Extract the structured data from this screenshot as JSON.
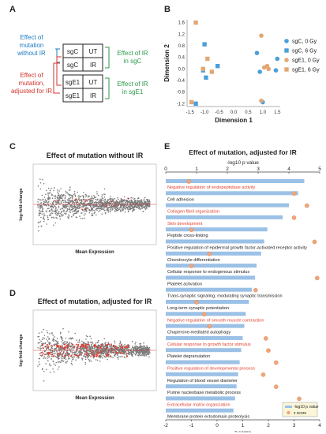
{
  "panels": {
    "A": {
      "letter": "A",
      "labels": {
        "effect_no_ir": [
          "Effect of",
          "mutation",
          "without IR"
        ],
        "effect_adj_ir": [
          "Effect of",
          "mutation,",
          "adjusted for IR"
        ],
        "effect_ir_sgc": [
          "Effect of IR",
          "in sgC"
        ],
        "effect_ir_sge1": [
          "Effect of IR",
          "in sgE1"
        ]
      },
      "rows": [
        {
          "sg": "sgC",
          "treat": "UT"
        },
        {
          "sg": "sgC",
          "treat": "IR"
        },
        {
          "sg": "sgE1",
          "treat": "UT"
        },
        {
          "sg": "sgE1",
          "treat": "IR"
        }
      ]
    },
    "B": {
      "letter": "B",
      "legend": [
        "sgC, 0 Gy",
        "sgC, 6 Gy",
        "sgE1, 0 Gy",
        "sgE1, 6 Gy"
      ]
    },
    "C": {
      "letter": "C",
      "title": "Effect of mutation without IR",
      "xlabel": "Mean Expression",
      "ylabel": "log-fold-change"
    },
    "D": {
      "letter": "D",
      "title": "Effect of mutation,  adjusted for IR",
      "xlabel": "Mean Expression",
      "ylabel": "log-fold-change"
    },
    "E": {
      "letter": "E",
      "title": "Effect of mutation,  adjusted for IR",
      "top_axis_label": "-log10 p value",
      "bottom_axis_label": "z score",
      "legend": [
        "-log10 p value",
        "z score"
      ]
    }
  },
  "chart_data": [
    {
      "id": "B",
      "type": "scatter",
      "xlabel": "Dimension 1",
      "ylabel": "Dimension 2",
      "xlim": [
        -1.6,
        1.6
      ],
      "ylim": [
        -1.3,
        1.7
      ],
      "xticks": [
        -1.5,
        -1.0,
        -0.5,
        0.0,
        0.5,
        1.0,
        1.5
      ],
      "yticks": [
        -1.2,
        -0.8,
        -0.4,
        0.0,
        0.4,
        0.8,
        1.2,
        1.6
      ],
      "series": [
        {
          "name": "sgC, 0 Gy",
          "color": "#4a9fd8",
          "shape": "circle",
          "points": [
            [
              0.8,
              0.55
            ],
            [
              0.9,
              -0.1
            ],
            [
              1.5,
              0.35
            ],
            [
              1.0,
              -1.15
            ],
            [
              1.45,
              -0.05
            ]
          ]
        },
        {
          "name": "sgC, 6 Gy",
          "color": "#4a9fd8",
          "shape": "square",
          "points": [
            [
              -1.0,
              0.85
            ],
            [
              -1.05,
              -0.05
            ],
            [
              -0.55,
              0.1
            ],
            [
              -1.3,
              -1.2
            ],
            [
              -0.95,
              -0.3
            ]
          ]
        },
        {
          "name": "sgE1, 0 Gy",
          "color": "#e0a877",
          "shape": "circle",
          "points": [
            [
              0.95,
              1.15
            ],
            [
              1.05,
              0.05
            ],
            [
              1.15,
              0.1
            ],
            [
              0.95,
              -1.1
            ],
            [
              1.2,
              0.0
            ]
          ]
        },
        {
          "name": "sgE1, 6 Gy",
          "color": "#e0a877",
          "shape": "square",
          "points": [
            [
              -1.3,
              1.6
            ],
            [
              -0.9,
              0.35
            ],
            [
              -1.05,
              0.0
            ],
            [
              -1.45,
              -1.15
            ],
            [
              -0.75,
              -0.1
            ]
          ]
        }
      ]
    },
    {
      "id": "E",
      "type": "bar",
      "orientation": "horizontal",
      "top_axis": {
        "label": "-log10 p value",
        "lim": [
          0,
          5
        ],
        "ticks": [
          0,
          1,
          2,
          3,
          4,
          5
        ]
      },
      "bottom_axis": {
        "label": "z score",
        "lim": [
          -2,
          4
        ],
        "ticks": [
          -2,
          -1,
          0,
          1,
          2,
          3,
          4
        ]
      },
      "categories": [
        "Negative regulation of endopeptidase activity",
        "Cell adhesion",
        "Collagen fibril organization",
        "Skin development",
        "Peptide cross-linking",
        "Positive regulation of epidermal growth factor-activated receptor activity",
        "Chondrocyte differentiation",
        "Cellular response to endogenous stimulus",
        "Platelet activation",
        "Trans-synaptic signaling, modulating synaptic transmission",
        "Long-term synaptic potentiation",
        "Negative regulation of smooth muscle contraction",
        "Chaperone-mediated autophagy",
        "Cellular response to growth factor stimulus",
        "Platelet degranulation",
        "Positive regulation of developmental process",
        "Regulation of blood vessel diameter",
        "Purine nucleobase metabolic process",
        "Extracellular matrix organization",
        "Membrane protein ectodomain proteolysis"
      ],
      "highlight": [
        true,
        false,
        true,
        true,
        false,
        false,
        false,
        false,
        false,
        false,
        false,
        true,
        false,
        true,
        false,
        true,
        false,
        false,
        true,
        false
      ],
      "series": [
        {
          "name": "-log10 p value",
          "values": [
            4.5,
            4.3,
            4.0,
            3.8,
            3.3,
            3.2,
            3.1,
            2.95,
            2.9,
            2.8,
            2.7,
            2.6,
            2.55,
            2.5,
            2.45,
            2.4,
            2.35,
            2.3,
            2.25,
            2.2
          ]
        },
        {
          "name": "z score",
          "values": [
            -1.1,
            3.0,
            3.5,
            3.0,
            -1.0,
            3.8,
            -0.3,
            -1.0,
            3.9,
            1.5,
            -0.8,
            -0.5,
            -0.3,
            1.9,
            2.0,
            2.3,
            1.8,
            2.3,
            3.2,
            2.7
          ]
        }
      ],
      "colors": {
        "bar": "#9cc1e6",
        "dot": "#f0a57a",
        "highlight_text": "#e0412f",
        "text": "#222222"
      }
    }
  ]
}
